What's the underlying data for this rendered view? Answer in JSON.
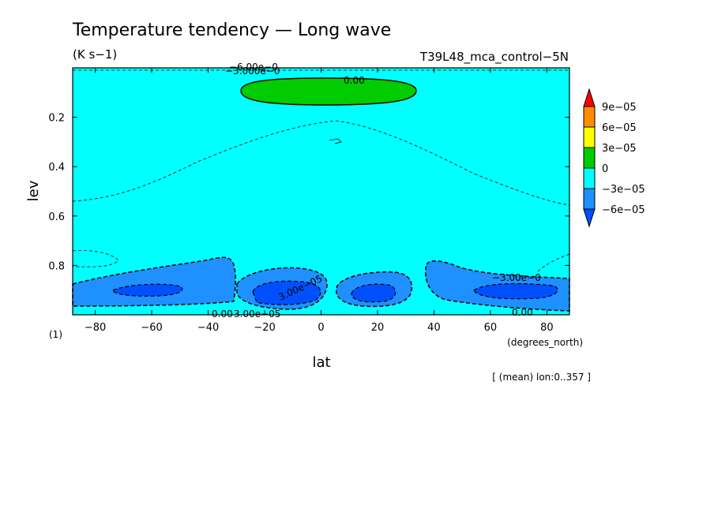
{
  "chart_data": {
    "type": "contour",
    "title": "Temperature tendency — Long wave",
    "units": "(K s−1)",
    "run": "T39L48_mca_control−5N",
    "xlabel": "lat",
    "xunits": "(degrees_north)",
    "ylabel": "lev",
    "ylevel_unit": "(1)",
    "footer": "[ (mean) lon:0..357 ]",
    "xlim": [
      -88,
      88
    ],
    "ylim": [
      0.0,
      1.0
    ],
    "y_inverted": true,
    "x_ticks": [
      {
        "v": -80,
        "label": "−80"
      },
      {
        "v": -60,
        "label": "−60"
      },
      {
        "v": -40,
        "label": "−40"
      },
      {
        "v": -20,
        "label": "−20"
      },
      {
        "v": 0,
        "label": "0"
      },
      {
        "v": 20,
        "label": "20"
      },
      {
        "v": 40,
        "label": "40"
      },
      {
        "v": 60,
        "label": "60"
      },
      {
        "v": 80,
        "label": "80"
      }
    ],
    "y_ticks": [
      {
        "v": 0.2,
        "label": "0.2"
      },
      {
        "v": 0.4,
        "label": "0.4"
      },
      {
        "v": 0.6,
        "label": "0.6"
      },
      {
        "v": 0.8,
        "label": "0.8"
      }
    ],
    "colorbar": {
      "labels": [
        "9e−05",
        "6e−05",
        "3e−05",
        "0",
        "−3e−05",
        "−6e−05"
      ],
      "colors": {
        "above_9e-05": "#ff0000",
        "6e-05_to_9e-05": "#ff8c00",
        "3e-05_to_6e-05": "#ffff00",
        "0_to_3e-05": "#00cc00",
        "-3e-05_to_0": "#00ffff",
        "-6e-05_to_-3e-05": "#1e90ff",
        "below_-6e-05": "#0050ff"
      }
    },
    "background_color": "#00ffff",
    "contour_labels": [
      "0.00",
      "−3.00e−0",
      "3.00e−05",
      "0.00",
      "3.00e−05",
      "0.00",
      "−6.00e−0",
      "−3.000e−0"
    ],
    "regions": [
      {
        "name": "upper positive lobe",
        "range": "0_to_3e-05",
        "lat": [
          -30,
          33
        ],
        "lev": [
          0.05,
          0.15
        ]
      },
      {
        "name": "lower tropospheric cooling (south)",
        "range": "-6e-05_to_-3e-05",
        "lat": [
          -88,
          -30
        ],
        "lev": [
          0.78,
          0.97
        ]
      },
      {
        "name": "lower tropospheric cooling core (south)",
        "range": "below_-6e-05",
        "lat": [
          -70,
          -47
        ],
        "lev": [
          0.86,
          0.9
        ]
      },
      {
        "name": "lower tropospheric cooling (equator)",
        "range": "below_-6e-05",
        "lat": [
          -25,
          2
        ],
        "lev": [
          0.85,
          0.95
        ]
      },
      {
        "name": "lower tropospheric cooling (north of equator)",
        "range": "below_-6e-05",
        "lat": [
          6,
          25
        ],
        "lev": [
          0.86,
          0.95
        ]
      },
      {
        "name": "lower tropospheric cooling (north)",
        "range": "-6e-05_to_-3e-05",
        "lat": [
          37,
          88
        ],
        "lev": [
          0.8,
          0.98
        ]
      },
      {
        "name": "lower tropospheric cooling core (north)",
        "range": "below_-6e-05",
        "lat": [
          54,
          80
        ],
        "lev": [
          0.87,
          0.92
        ]
      }
    ]
  }
}
